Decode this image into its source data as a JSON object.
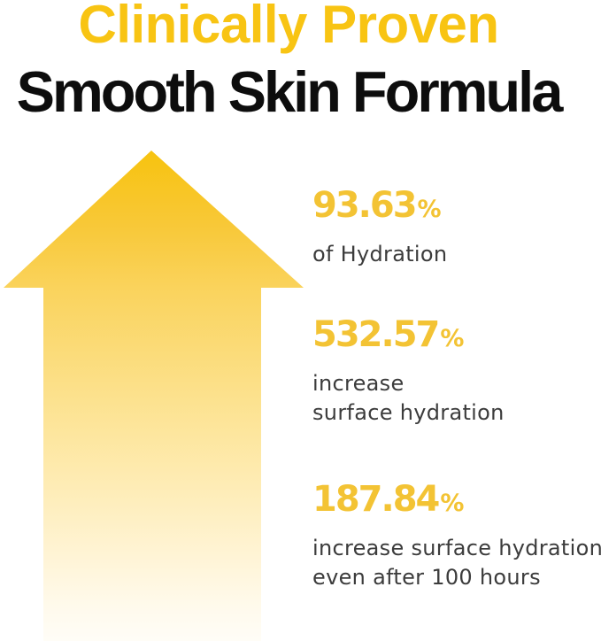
{
  "header": {
    "eyebrow": "Clinically Proven",
    "title": "Smooth Skin Formula"
  },
  "stats": [
    {
      "value": "93.63",
      "unit": "%",
      "line1": "of Hydration"
    },
    {
      "value": "532.57",
      "unit": "%",
      "line1": "increase",
      "line2": "surface hydration"
    },
    {
      "value": "187.84",
      "unit": "%",
      "line1": "increase surface hydration",
      "line2": "even after 100 hours"
    }
  ],
  "graphics": {
    "arrow": "upward-arrow"
  },
  "colors": {
    "accent_gold_title": "#F8C413",
    "stat_gold": "#F3C334",
    "headline_black": "#0D0D0D",
    "body_gray": "#3C3C3C",
    "arrow_gradient_top": "#F7C30F",
    "arrow_gradient_bottom": "#FFFDF7",
    "background": "#FFFFFF"
  }
}
